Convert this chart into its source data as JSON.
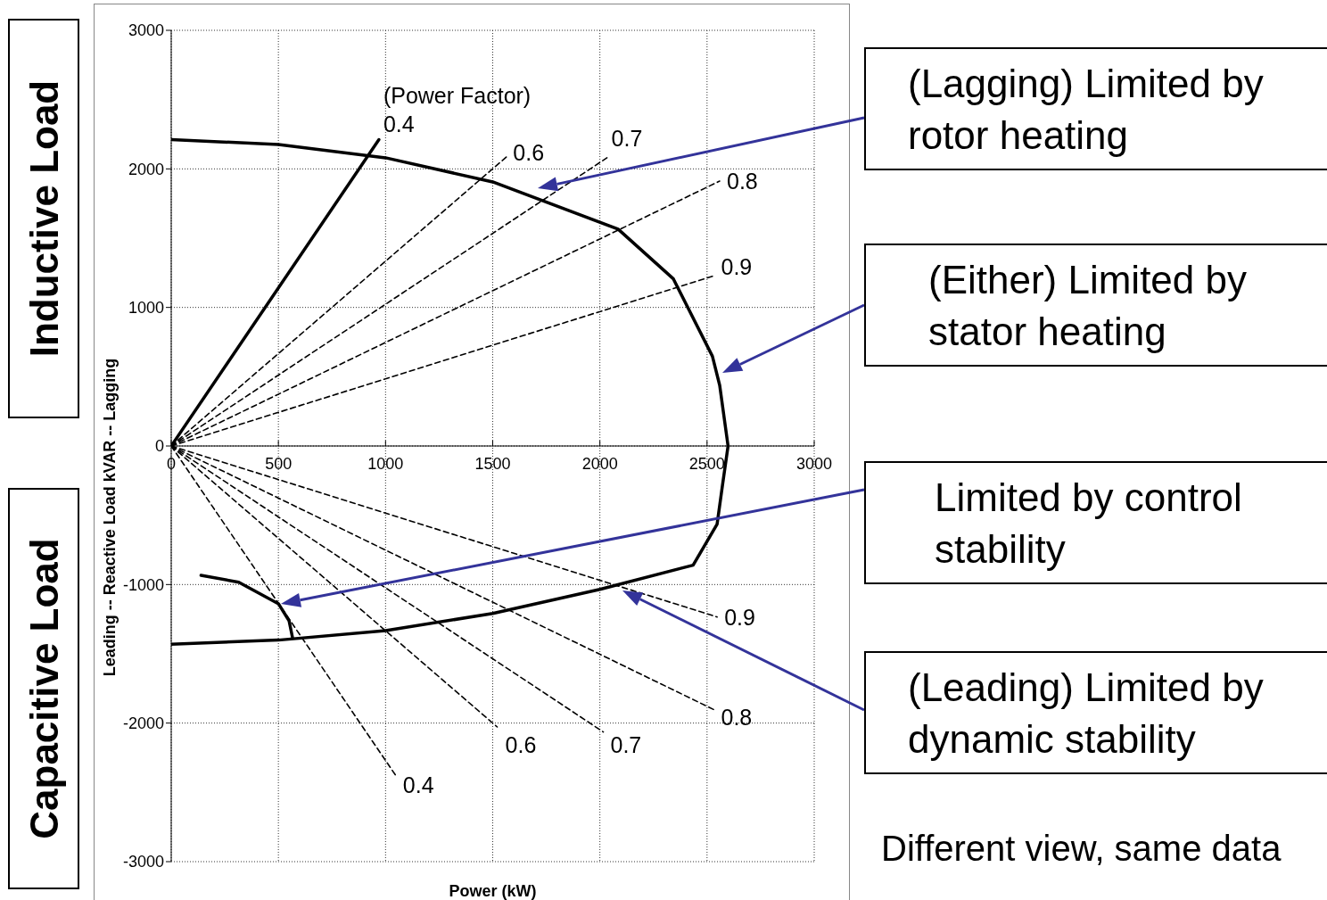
{
  "chart_data": {
    "type": "line",
    "xlabel": "Power (kW)",
    "ylabel": "Leading -- Reactive Load kVAR -- Lagging",
    "xlim": [
      0,
      3000
    ],
    "ylim": [
      -3000,
      3000
    ],
    "xticks": [
      0,
      500,
      1000,
      1500,
      2000,
      2500,
      3000
    ],
    "yticks": [
      -3000,
      -2000,
      -1000,
      0,
      1000,
      2000,
      3000
    ],
    "grid": true,
    "series": [
      {
        "color": "#000000",
        "line_style": "solid",
        "x": [
          0,
          500,
          1000,
          1500,
          2085,
          2343,
          2525,
          2559,
          2598,
          2572,
          2547,
          2435,
          2000,
          1500,
          1000,
          500,
          0
        ],
        "values": [
          2211,
          2176,
          2080,
          1906,
          1565,
          1206,
          648,
          438,
          0,
          -283,
          -564,
          -860,
          -1035,
          -1209,
          -1332,
          -1401,
          -1430
        ]
      },
      {
        "color": "#000000",
        "line_style": "solid",
        "x": [
          139,
          315,
          501,
          550,
          566
        ],
        "values": [
          -934,
          -983,
          -1140,
          -1262,
          -1384
        ]
      },
      {
        "color": "#000000",
        "line_style": "solid",
        "x": [
          0,
          969
        ],
        "values": [
          0,
          2211
        ]
      },
      {
        "color": "#000000",
        "line_style": "dashed",
        "x": [
          0,
          1566
        ],
        "values": [
          0,
          2089
        ]
      },
      {
        "color": "#000000",
        "line_style": "dashed",
        "x": [
          0,
          2033
        ],
        "values": [
          0,
          2080
        ]
      },
      {
        "color": "#000000",
        "line_style": "dashed",
        "x": [
          0,
          2559
        ],
        "values": [
          0,
          1912
        ]
      },
      {
        "color": "#000000",
        "line_style": "dashed",
        "x": [
          0,
          2536
        ],
        "values": [
          0,
          1230
        ]
      },
      {
        "color": "#000000",
        "line_style": "dashed",
        "x": [
          0,
          2547
        ],
        "values": [
          0,
          -1234
        ]
      },
      {
        "color": "#000000",
        "line_style": "dashed",
        "x": [
          0,
          2536
        ],
        "values": [
          0,
          -1906
        ]
      },
      {
        "color": "#000000",
        "line_style": "dashed",
        "x": [
          0,
          2016
        ],
        "values": [
          0,
          -2064
        ]
      },
      {
        "color": "#000000",
        "line_style": "dashed",
        "x": [
          0,
          1521
        ],
        "values": [
          0,
          -2028
        ]
      },
      {
        "color": "#000000",
        "line_style": "dashed",
        "x": [
          0,
          1048
        ],
        "values": [
          0,
          -2379
        ]
      }
    ],
    "annotations": [
      "Inductive Load",
      "Capacitive Load",
      "Different view, same data",
      "(Lagging) Limited by rotor heating",
      "(Either) Limited by stator heating",
      "Limited by control stability",
      "(Leading) Limited by dynamic stability",
      "(Power Factor)",
      "0.4",
      "0.6",
      "0.7",
      "0.8",
      "0.9",
      "0.9",
      "0.8",
      "0.7",
      "0.6",
      "0.4"
    ]
  }
}
